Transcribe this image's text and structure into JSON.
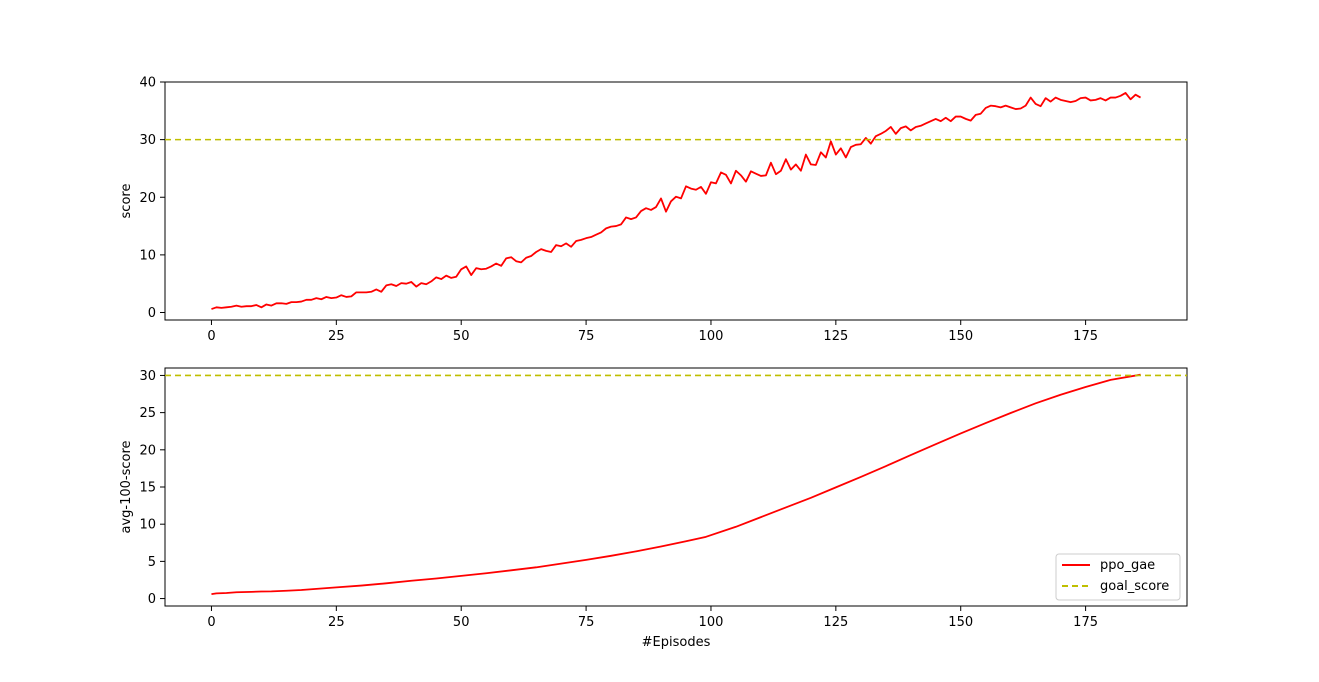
{
  "chart_data": [
    {
      "type": "line",
      "title": "",
      "xlabel": "",
      "ylabel": "score",
      "xlim": [
        -9.3,
        195.3
      ],
      "ylim": [
        -1.3,
        40.0
      ],
      "xticks": [
        0,
        25,
        50,
        75,
        100,
        125,
        150,
        175
      ],
      "yticks": [
        0,
        10,
        20,
        30,
        40
      ],
      "legend": false,
      "series": [
        {
          "color": "#ff0000",
          "x_start": 0,
          "values": [
            0.6,
            0.9,
            0.8,
            0.9,
            1.0,
            1.2,
            1.0,
            1.1,
            1.1,
            1.3,
            0.9,
            1.4,
            1.2,
            1.6,
            1.6,
            1.5,
            1.8,
            1.8,
            1.9,
            2.2,
            2.2,
            2.5,
            2.3,
            2.7,
            2.5,
            2.6,
            3.0,
            2.7,
            2.8,
            3.5,
            3.5,
            3.5,
            3.6,
            4.0,
            3.6,
            4.7,
            4.9,
            4.6,
            5.1,
            5.0,
            5.3,
            4.5,
            5.1,
            4.9,
            5.4,
            6.1,
            5.8,
            6.4,
            6.0,
            6.2,
            7.5,
            8.0,
            6.5,
            7.7,
            7.5,
            7.6,
            8.0,
            8.5,
            8.1,
            9.4,
            9.6,
            8.9,
            8.7,
            9.5,
            9.8,
            10.5,
            11.0,
            10.7,
            10.5,
            11.7,
            11.5,
            12.0,
            11.4,
            12.4,
            12.6,
            12.9,
            13.1,
            13.5,
            13.9,
            14.6,
            14.9,
            15.0,
            15.3,
            16.5,
            16.2,
            16.5,
            17.6,
            18.1,
            17.8,
            18.3,
            19.8,
            17.5,
            19.3,
            20.1,
            19.8,
            21.9,
            21.5,
            21.3,
            21.8,
            20.6,
            22.6,
            22.4,
            24.3,
            23.9,
            22.4,
            24.6,
            23.8,
            22.7,
            24.5,
            24.1,
            23.7,
            23.8,
            26.0,
            24.0,
            24.6,
            26.6,
            24.8,
            25.7,
            24.6,
            27.4,
            25.7,
            25.6,
            27.8,
            26.9,
            29.7,
            27.4,
            28.5,
            26.9,
            28.7,
            29.1,
            29.2,
            30.3,
            29.3,
            30.6,
            31.0,
            31.5,
            32.2,
            31.0,
            32.0,
            32.3,
            31.6,
            32.2,
            32.4,
            32.8,
            33.2,
            33.6,
            33.2,
            33.8,
            33.2,
            34.0,
            34.0,
            33.6,
            33.3,
            34.3,
            34.5,
            35.5,
            35.9,
            35.8,
            35.6,
            35.9,
            35.6,
            35.3,
            35.4,
            35.9,
            37.3,
            36.2,
            35.8,
            37.2,
            36.6,
            37.3,
            36.9,
            36.7,
            36.5,
            36.7,
            37.2,
            37.3,
            36.8,
            36.9,
            37.2,
            36.8,
            37.3,
            37.3,
            37.6,
            38.1,
            37.0,
            37.8,
            37.3
          ]
        },
        {
          "color": "#bfbf00",
          "dashed": true,
          "constant": 30
        }
      ]
    },
    {
      "type": "line",
      "title": "",
      "xlabel": "#Episodes",
      "ylabel": "avg-100-score",
      "xlim": [
        -9.3,
        195.3
      ],
      "ylim": [
        -1.0,
        31.0
      ],
      "xticks": [
        0,
        25,
        50,
        75,
        100,
        125,
        150,
        175
      ],
      "yticks": [
        0,
        5,
        10,
        15,
        20,
        25,
        30
      ],
      "legend": true,
      "legend_position": "lower-right",
      "series": [
        {
          "name": "ppo_gae",
          "color": "#ff0000",
          "x": [
            0,
            1,
            3,
            5,
            8,
            10,
            12,
            15,
            18,
            20,
            25,
            30,
            35,
            40,
            45,
            50,
            55,
            60,
            65,
            70,
            75,
            80,
            85,
            90,
            95,
            99,
            105,
            110,
            115,
            120,
            125,
            130,
            135,
            140,
            145,
            150,
            155,
            160,
            165,
            170,
            175,
            180,
            186
          ],
          "values": [
            0.6,
            0.7,
            0.75,
            0.85,
            0.9,
            0.95,
            0.97,
            1.05,
            1.15,
            1.25,
            1.5,
            1.75,
            2.05,
            2.4,
            2.7,
            3.05,
            3.4,
            3.8,
            4.2,
            4.7,
            5.2,
            5.75,
            6.35,
            7.0,
            7.7,
            8.3,
            9.65,
            10.95,
            12.25,
            13.55,
            14.95,
            16.35,
            17.8,
            19.3,
            20.75,
            22.2,
            23.6,
            24.95,
            26.25,
            27.4,
            28.45,
            29.4,
            30.1
          ]
        },
        {
          "name": "goal_score",
          "color": "#bfbf00",
          "dashed": true,
          "constant": 30
        }
      ]
    }
  ]
}
